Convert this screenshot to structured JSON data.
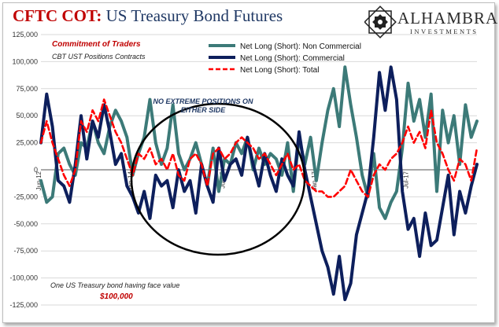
{
  "header": {
    "title_prefix": "CFTC COT:",
    "title_rest": " US Treasury Bond Futures",
    "brand_name": "ALHAMBRA",
    "brand_sub": "INVESTMENTS"
  },
  "notes": {
    "cot_title": "Commitment of Traders",
    "cot_sub": "CBT UST Positions Contracts",
    "annotation": "NO EXTREME POSITIONS ON EITHER SIDE",
    "face_value_text": "One US Treasury bond having face value",
    "face_value_amount": "$100,000"
  },
  "colors": {
    "non_commercial": "#3c7a78",
    "commercial": "#0d1f5c",
    "total": "#ff0000",
    "title_red": "#c00000",
    "title_navy": "#1f3864"
  },
  "chart_data": {
    "type": "line",
    "ylim": [
      -125000,
      125000
    ],
    "yticks": [
      -125000,
      -100000,
      -75000,
      -50000,
      -25000,
      0,
      25000,
      50000,
      75000,
      100000,
      125000
    ],
    "ytick_labels": [
      "-125,000",
      "-100,000",
      "-75,000",
      "-50,000",
      "-25,000",
      "0",
      "25,000",
      "50,000",
      "75,000",
      "100,000",
      "125,000"
    ],
    "grid": true,
    "legend_position": "top-center",
    "x_ticks": [
      {
        "label": "Jun-12",
        "index": 0
      },
      {
        "label": "Jan-14",
        "index": 16
      },
      {
        "label": "Jul-15",
        "index": 32
      },
      {
        "label": "Jan-17",
        "index": 48
      },
      {
        "label": "Jul-17",
        "index": 64
      }
    ],
    "series": [
      {
        "name": "Net Long (Short): Non Commercial",
        "key": "non_commercial",
        "values": [
          -10000,
          -30000,
          -25000,
          15000,
          20000,
          5000,
          -5000,
          25000,
          20000,
          45000,
          25000,
          15000,
          40000,
          55000,
          45000,
          30000,
          -5000,
          15000,
          30000,
          65000,
          25000,
          5000,
          20000,
          60000,
          15000,
          0,
          10000,
          25000,
          5000,
          -15000,
          20000,
          -20000,
          10000,
          5000,
          25000,
          15000,
          30000,
          0,
          20000,
          5000,
          15000,
          10000,
          -5000,
          25000,
          -20000,
          30000,
          5000,
          30000,
          -10000,
          25000,
          55000,
          75000,
          40000,
          95000,
          60000,
          30000,
          -5000,
          -25000,
          15000,
          -35000,
          -45000,
          -30000,
          -20000,
          20000,
          80000,
          45000,
          65000,
          30000,
          70000,
          -20000,
          55000,
          25000,
          50000,
          5000,
          60000,
          30000,
          45000
        ]
      },
      {
        "name": "Net Long (Short): Commercial",
        "key": "commercial",
        "values": [
          25000,
          70000,
          40000,
          -10000,
          -15000,
          -30000,
          5000,
          50000,
          10000,
          45000,
          30000,
          60000,
          35000,
          5000,
          15000,
          -15000,
          -25000,
          -40000,
          -20000,
          -45000,
          -5000,
          -15000,
          -10000,
          -35000,
          0,
          -20000,
          -10000,
          -40000,
          5000,
          -15000,
          -30000,
          20000,
          -10000,
          5000,
          10000,
          -5000,
          30000,
          5000,
          -15000,
          15000,
          -5000,
          -20000,
          10000,
          -5000,
          -15000,
          35000,
          0,
          -25000,
          -50000,
          -75000,
          -90000,
          -115000,
          -80000,
          -120000,
          -105000,
          -60000,
          -40000,
          -20000,
          30000,
          90000,
          55000,
          95000,
          65000,
          -20000,
          -55000,
          -45000,
          -80000,
          -40000,
          -70000,
          -65000,
          -35000,
          -5000,
          -60000,
          -20000,
          -40000,
          -15000,
          5000
        ]
      },
      {
        "name": "Net Long (Short): Total",
        "key": "total",
        "values": [
          25000,
          45000,
          25000,
          10000,
          -5000,
          -15000,
          0,
          45000,
          35000,
          55000,
          45000,
          65000,
          50000,
          35000,
          25000,
          10000,
          -5000,
          15000,
          10000,
          20000,
          5000,
          10000,
          0,
          15000,
          -5000,
          -10000,
          10000,
          15000,
          5000,
          -15000,
          15000,
          20000,
          10000,
          15000,
          25000,
          30000,
          25000,
          20000,
          10000,
          15000,
          5000,
          -5000,
          5000,
          15000,
          0,
          5000,
          -10000,
          -15000,
          -20000,
          -20000,
          -25000,
          -25000,
          -20000,
          -15000,
          0,
          -10000,
          -20000,
          -25000,
          -5000,
          5000,
          0,
          10000,
          15000,
          25000,
          40000,
          25000,
          35000,
          20000,
          55000,
          25000,
          15000,
          0,
          -10000,
          10000,
          5000,
          -10000,
          20000
        ]
      }
    ]
  }
}
